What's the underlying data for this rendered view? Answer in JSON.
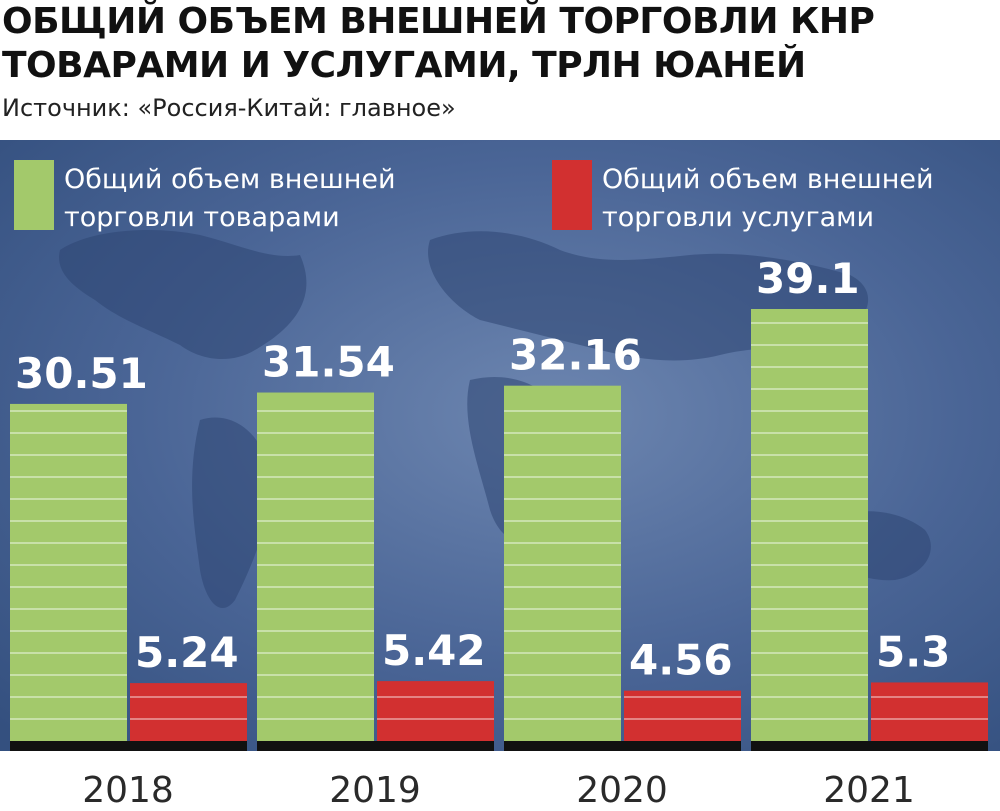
{
  "header": {
    "title": "ОБЩИЙ ОБЪЕМ ВНЕШНЕЙ ТОРГОВЛИ КНР ТОВАРАМИ И УСЛУГАМИ, ТРЛН ЮАНЕЙ",
    "source": "Источник: «Россия-Китай: главное»"
  },
  "colors": {
    "background": "#3d5a8c",
    "goods": "#a3c96b",
    "services": "#d23030",
    "baseline": "#111111"
  },
  "chart_data": {
    "type": "bar",
    "title": "ОБЩИЙ ОБЪЕМ ВНЕШНЕЙ ТОРГОВЛИ КНР ТОВАРАМИ И УСЛУГАМИ, ТРЛН ЮАНЕЙ",
    "categories": [
      "2018",
      "2019",
      "2020",
      "2021"
    ],
    "series": [
      {
        "name": "Общий объем внешней торговли товарами",
        "legend_lines": [
          "Общий объем внешней",
          "торговли товарами"
        ],
        "color": "#a3c96b",
        "values": [
          30.51,
          31.54,
          32.16,
          39.1
        ],
        "labels": [
          "30.51",
          "31.54",
          "32.16",
          "39.1"
        ]
      },
      {
        "name": "Общий объем внешней торговли услугами",
        "legend_lines": [
          "Общий объем внешней",
          "торговли услугами"
        ],
        "color": "#d23030",
        "values": [
          5.24,
          5.42,
          4.56,
          5.3
        ],
        "labels": [
          "5.24",
          "5.42",
          "4.56",
          "5.3"
        ]
      }
    ],
    "legend_position": "top",
    "grid": false
  }
}
